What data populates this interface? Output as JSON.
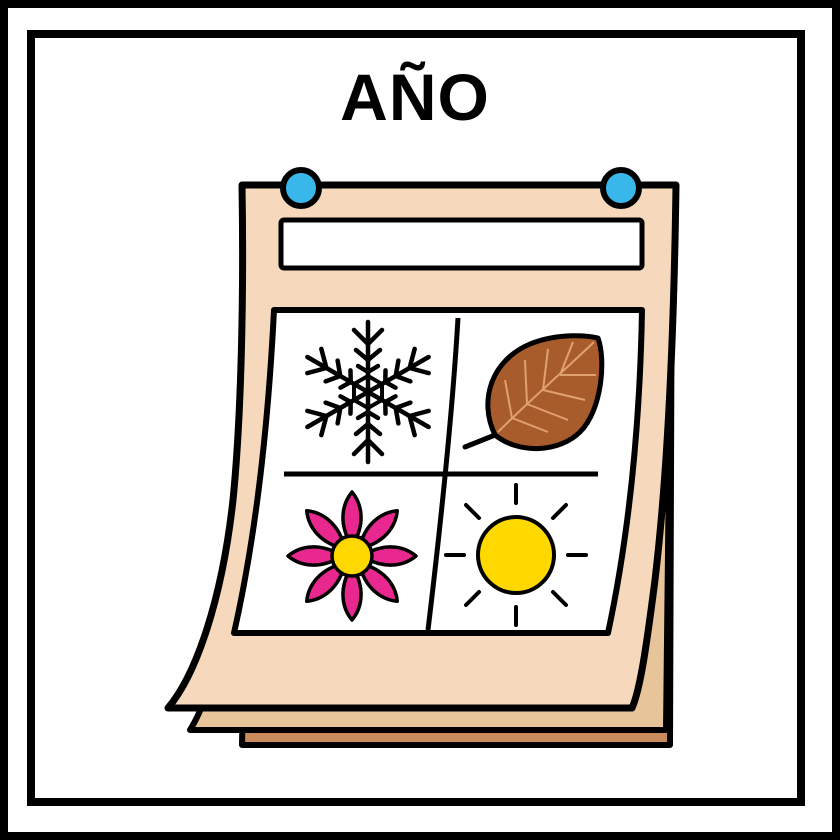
{
  "title": "AÑO",
  "colors": {
    "page": "#f6d9bd",
    "page_back_1": "#e8c49b",
    "page_back_2": "#c98a5c",
    "pin": "#39b6ea",
    "leaf": "#a85c2c",
    "leaf_vein": "#e0a070",
    "flower": "#e8288e",
    "flower_center": "#ffd800",
    "sun": "#ffd800"
  },
  "icons": {
    "calendar": "calendar-icon",
    "winter": "snowflake-icon",
    "autumn": "leaf-icon",
    "spring": "flower-icon",
    "summer": "sun-icon"
  }
}
